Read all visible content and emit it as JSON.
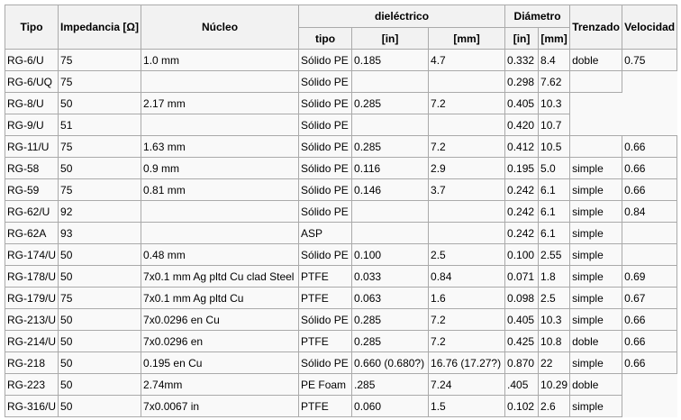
{
  "headers": {
    "tipo": "Tipo",
    "impedancia": "Impedancia [Ω]",
    "nucleo": "Núcleo",
    "dielectrico": "dieléctrico",
    "diametro": "Diámetro",
    "trenzado": "Trenzado",
    "velocidad": "Velocidad",
    "diel_tipo": "tipo",
    "diel_in": "[in]",
    "diel_mm": "[mm]",
    "diam_in": "[in]",
    "diam_mm": "[mm]"
  },
  "rows": [
    [
      "RG-6/U",
      "75",
      "1.0 mm",
      "Sólido PE",
      "0.185",
      "4.7",
      "0.332",
      "8.4",
      "doble",
      "0.75"
    ],
    [
      "RG-6/UQ",
      "75",
      "",
      "Sólido PE",
      "",
      "",
      "0.298",
      "7.62",
      ""
    ],
    [
      "RG-8/U",
      "50",
      "2.17 mm",
      "Sólido PE",
      "0.285",
      "7.2",
      "0.405",
      "10.3"
    ],
    [
      "RG-9/U",
      "51",
      "",
      "Sólido PE",
      "",
      "",
      "0.420",
      "10.7"
    ],
    [
      "RG-11/U",
      "75",
      "1.63 mm",
      "Sólido PE",
      "0.285",
      "7.2",
      "0.412",
      "10.5",
      "",
      "0.66"
    ],
    [
      "RG-58",
      "50",
      "0.9 mm",
      "Sólido PE",
      "0.116",
      "2.9",
      "0.195",
      "5.0",
      "simple",
      "0.66"
    ],
    [
      "RG-59",
      "75",
      "0.81 mm",
      "Sólido PE",
      "0.146",
      "3.7",
      "0.242",
      "6.1",
      "simple",
      "0.66"
    ],
    [
      "RG-62/U",
      "92",
      "",
      "Sólido PE",
      "",
      "",
      "0.242",
      "6.1",
      "simple",
      "0.84"
    ],
    [
      "RG-62A",
      "93",
      "",
      "ASP",
      "",
      "",
      "0.242",
      "6.1",
      "simple",
      ""
    ],
    [
      "RG-174/U",
      "50",
      "0.48 mm",
      "Sólido PE",
      "0.100",
      "2.5",
      "0.100",
      "2.55",
      "simple",
      ""
    ],
    [
      "RG-178/U",
      "50",
      "7x0.1 mm Ag pltd Cu clad Steel",
      "PTFE",
      "0.033",
      "0.84",
      "0.071",
      "1.8",
      "simple",
      "0.69"
    ],
    [
      "RG-179/U",
      "75",
      "7x0.1 mm Ag pltd Cu",
      "PTFE",
      "0.063",
      "1.6",
      "0.098",
      "2.5",
      "simple",
      "0.67"
    ],
    [
      "RG-213/U",
      "50",
      "7x0.0296 en Cu",
      "Sólido PE",
      "0.285",
      "7.2",
      "0.405",
      "10.3",
      "simple",
      "0.66"
    ],
    [
      "RG-214/U",
      "50",
      "7x0.0296 en",
      "PTFE",
      "0.285",
      "7.2",
      "0.425",
      "10.8",
      "doble",
      "0.66"
    ],
    [
      "RG-218",
      "50",
      "0.195 en Cu",
      "Sólido PE",
      "0.660 (0.680?)",
      "16.76 (17.27?)",
      "0.870",
      "22",
      "simple",
      "0.66"
    ],
    [
      "RG-223",
      "50",
      "2.74mm",
      "PE Foam",
      ".285",
      "7.24",
      ".405",
      "10.29",
      "doble"
    ],
    [
      "RG-316/U",
      "50",
      "7x0.0067 in",
      "PTFE",
      "0.060",
      "1.5",
      "0.102",
      "2.6",
      "simple"
    ]
  ]
}
